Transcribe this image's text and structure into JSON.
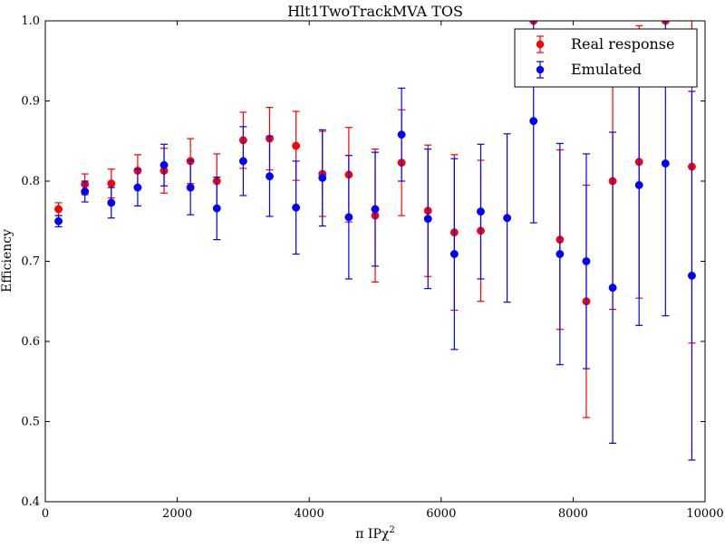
{
  "chart_data": {
    "type": "scatter",
    "title": "Hlt1TwoTrackMVA TOS",
    "xlabel": "π IPχ",
    "xlabel_superscript": "2",
    "ylabel": "Efficiency",
    "xlim": [
      0,
      10000
    ],
    "ylim": [
      0.4,
      1.0
    ],
    "xticks": [
      0,
      2000,
      4000,
      6000,
      8000,
      10000
    ],
    "yticks": [
      0.4,
      0.5,
      0.6,
      0.7,
      0.8,
      0.9,
      1.0
    ],
    "xtick_labels": [
      "0",
      "2000",
      "4000",
      "6000",
      "8000",
      "10000"
    ],
    "ytick_labels": [
      "0.4",
      "0.5",
      "0.6",
      "0.7",
      "0.8",
      "0.9",
      "1.0"
    ],
    "grid": false,
    "legend_position": "top-right",
    "series": [
      {
        "name": "Real response",
        "color": "#ff0000",
        "points": [
          {
            "x": 200,
            "y": 0.765,
            "err": 0.008
          },
          {
            "x": 600,
            "y": 0.796,
            "err": 0.013
          },
          {
            "x": 1000,
            "y": 0.797,
            "err": 0.018
          },
          {
            "x": 1400,
            "y": 0.813,
            "err": 0.02
          },
          {
            "x": 1800,
            "y": 0.813,
            "err": 0.028
          },
          {
            "x": 2200,
            "y": 0.825,
            "err": 0.028
          },
          {
            "x": 2600,
            "y": 0.8,
            "err": 0.034
          },
          {
            "x": 3000,
            "y": 0.851,
            "err": 0.035
          },
          {
            "x": 3400,
            "y": 0.853,
            "err": 0.039
          },
          {
            "x": 3800,
            "y": 0.844,
            "err": 0.043
          },
          {
            "x": 4200,
            "y": 0.809,
            "err": 0.053
          },
          {
            "x": 4600,
            "y": 0.808,
            "err": 0.059
          },
          {
            "x": 5000,
            "y": 0.757,
            "err": 0.083
          },
          {
            "x": 5400,
            "y": 0.823,
            "err": 0.066
          },
          {
            "x": 5800,
            "y": 0.763,
            "err": 0.082
          },
          {
            "x": 6200,
            "y": 0.736,
            "err": 0.097
          },
          {
            "x": 6600,
            "y": 0.738,
            "err": 0.088
          },
          {
            "x": 7400,
            "y": 1.0,
            "err": 0.0
          },
          {
            "x": 7800,
            "y": 0.727,
            "err": 0.112
          },
          {
            "x": 8200,
            "y": 0.65,
            "err": 0.145
          },
          {
            "x": 8600,
            "y": 0.8,
            "err": 0.16
          },
          {
            "x": 9000,
            "y": 0.824,
            "err": 0.17
          },
          {
            "x": 9400,
            "y": 1.0,
            "err": 0.0
          },
          {
            "x": 9800,
            "y": 0.818,
            "err": 0.22
          }
        ]
      },
      {
        "name": "Emulated",
        "color": "#0000ff",
        "points": [
          {
            "x": 200,
            "y": 0.75,
            "err": 0.007
          },
          {
            "x": 600,
            "y": 0.787,
            "err": 0.013
          },
          {
            "x": 1000,
            "y": 0.773,
            "err": 0.019
          },
          {
            "x": 1400,
            "y": 0.792,
            "err": 0.023
          },
          {
            "x": 1800,
            "y": 0.82,
            "err": 0.026
          },
          {
            "x": 2200,
            "y": 0.792,
            "err": 0.034
          },
          {
            "x": 2600,
            "y": 0.766,
            "err": 0.039
          },
          {
            "x": 3000,
            "y": 0.825,
            "err": 0.043
          },
          {
            "x": 3400,
            "y": 0.806,
            "err": 0.05
          },
          {
            "x": 3800,
            "y": 0.767,
            "err": 0.058
          },
          {
            "x": 4200,
            "y": 0.804,
            "err": 0.06
          },
          {
            "x": 4600,
            "y": 0.755,
            "err": 0.077
          },
          {
            "x": 5000,
            "y": 0.765,
            "err": 0.071
          },
          {
            "x": 5400,
            "y": 0.858,
            "err": 0.058
          },
          {
            "x": 5800,
            "y": 0.753,
            "err": 0.087
          },
          {
            "x": 6200,
            "y": 0.709,
            "err": 0.119
          },
          {
            "x": 6600,
            "y": 0.762,
            "err": 0.084
          },
          {
            "x": 7000,
            "y": 0.754,
            "err": 0.105
          },
          {
            "x": 7400,
            "y": 0.875,
            "err": 0.127
          },
          {
            "x": 7800,
            "y": 0.709,
            "err": 0.138
          },
          {
            "x": 8200,
            "y": 0.7,
            "err": 0.134
          },
          {
            "x": 8600,
            "y": 0.667,
            "err": 0.194
          },
          {
            "x": 9000,
            "y": 0.795,
            "err": 0.175
          },
          {
            "x": 9400,
            "y": 0.822,
            "err": 0.19
          },
          {
            "x": 9800,
            "y": 0.682,
            "err": 0.23
          }
        ]
      }
    ]
  }
}
